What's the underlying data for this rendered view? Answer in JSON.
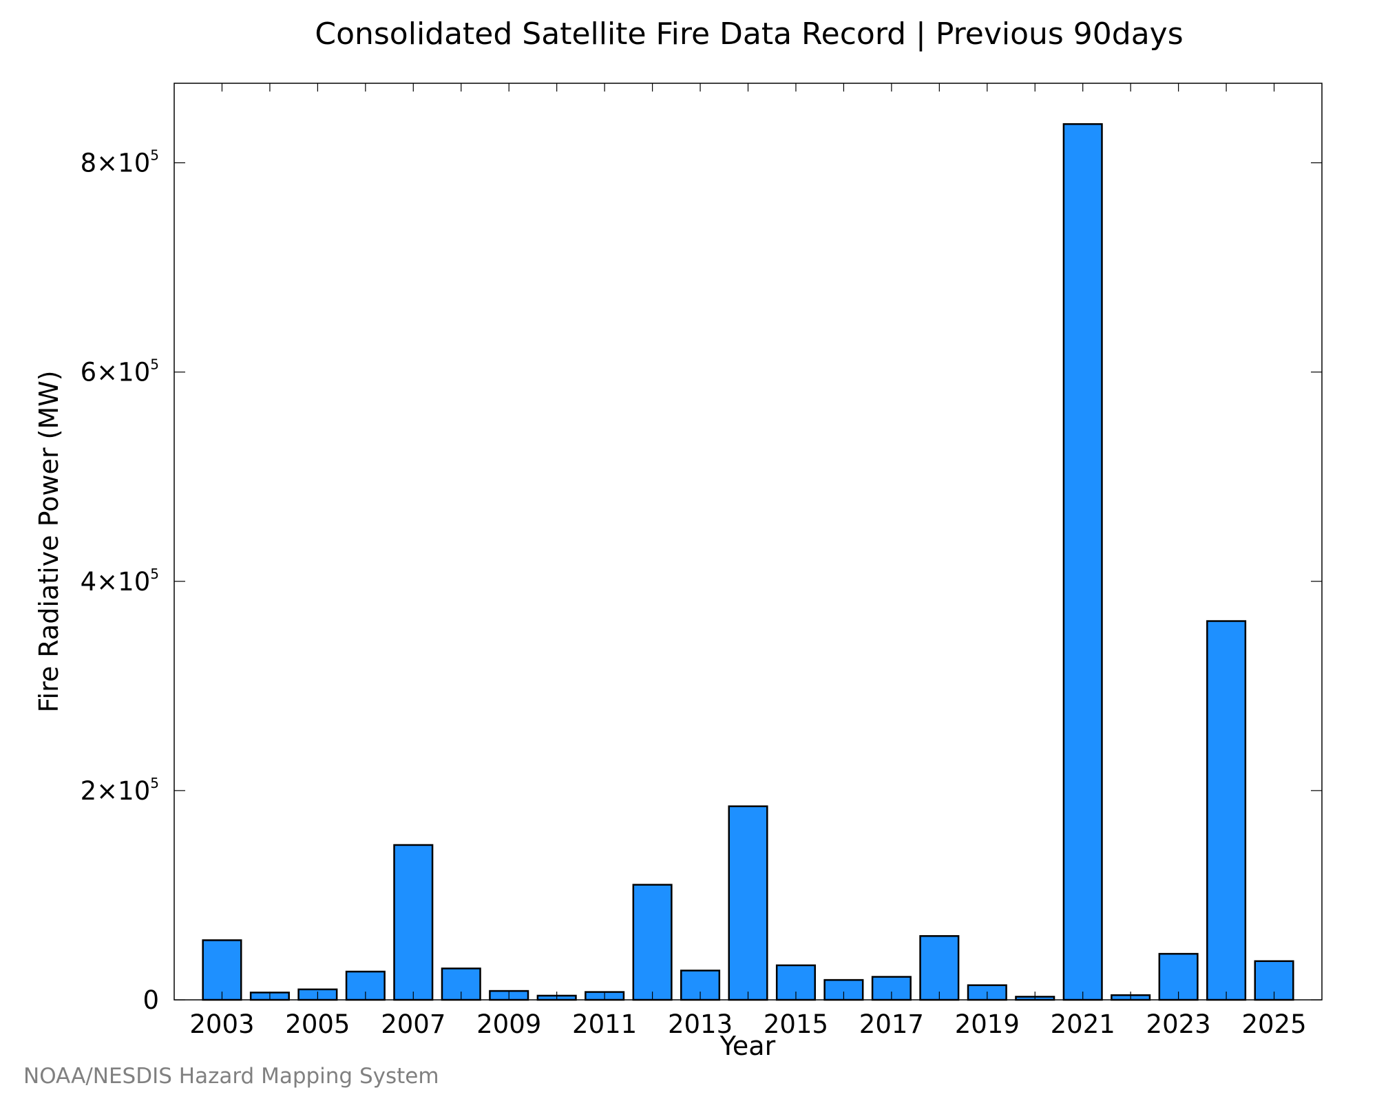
{
  "chart_data": {
    "type": "bar",
    "title": "Consolidated Satellite Fire Data Record | Previous 90days",
    "xlabel": "Year",
    "ylabel": "Fire Radiative Power (MW)",
    "categories": [
      "2003",
      "2004",
      "2005",
      "2006",
      "2007",
      "2008",
      "2009",
      "2010",
      "2011",
      "2012",
      "2013",
      "2014",
      "2015",
      "2016",
      "2017",
      "2018",
      "2019",
      "2020",
      "2021",
      "2022",
      "2023",
      "2024",
      "2025"
    ],
    "values": [
      57000,
      7000,
      10000,
      27000,
      148000,
      30000,
      8500,
      4000,
      7500,
      110000,
      28000,
      185000,
      33000,
      19000,
      22000,
      61000,
      14000,
      3000,
      837000,
      4500,
      44000,
      362000,
      37000
    ],
    "x_tick_labels": [
      "2003",
      "2005",
      "2007",
      "2009",
      "2011",
      "2013",
      "2015",
      "2017",
      "2019",
      "2021",
      "2023",
      "2025"
    ],
    "y_ticks": [
      {
        "value": 0,
        "mantissa": "0",
        "exponent": ""
      },
      {
        "value": 200000,
        "mantissa": "2×10",
        "exponent": "5"
      },
      {
        "value": 400000,
        "mantissa": "4×10",
        "exponent": "5"
      },
      {
        "value": 600000,
        "mantissa": "6×10",
        "exponent": "5"
      },
      {
        "value": 800000,
        "mantissa": "8×10",
        "exponent": "5"
      }
    ],
    "xlim": [
      2002.0,
      2026.0
    ],
    "ylim": [
      0,
      876000
    ],
    "bar_color": "#1e90ff",
    "bar_edge_color": "#000000",
    "grid": false,
    "legend": "none"
  },
  "credit": "NOAA/NESDIS Hazard Mapping System"
}
